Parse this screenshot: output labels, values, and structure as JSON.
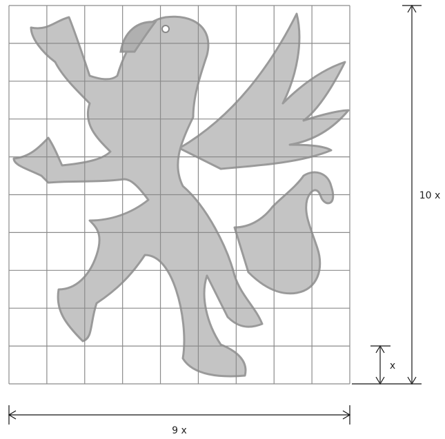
{
  "figure": {
    "labels": {
      "height": "10 x",
      "unit": "x",
      "width": "9 x"
    }
  }
}
